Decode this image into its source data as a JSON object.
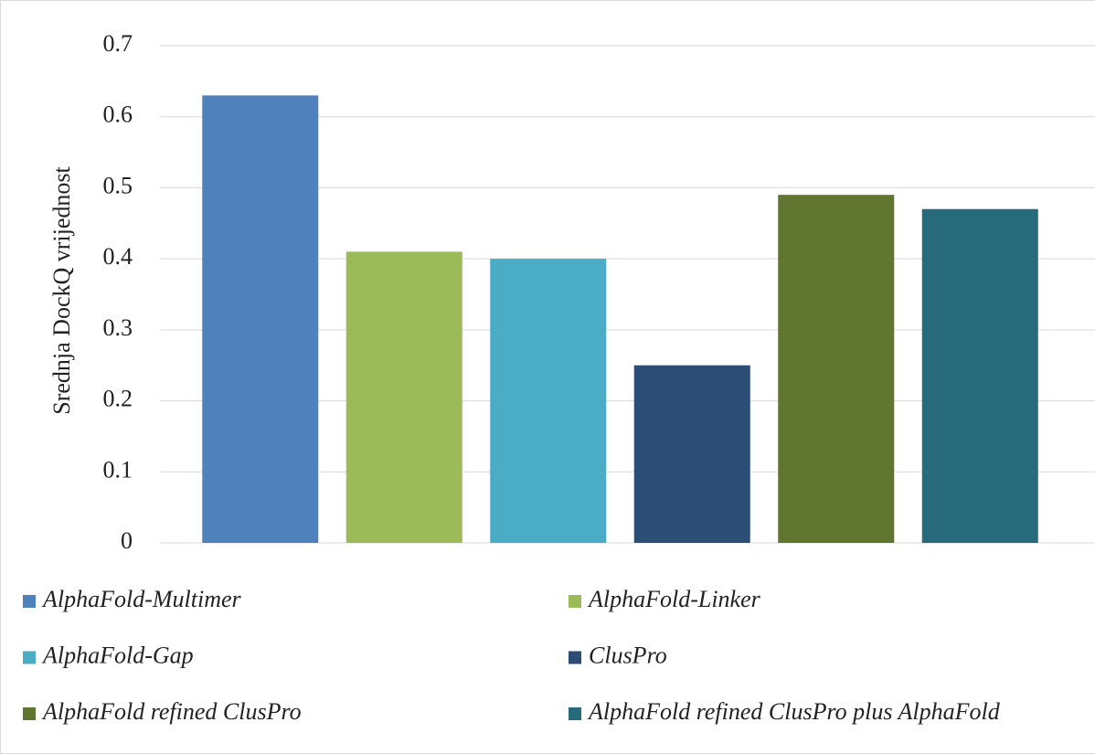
{
  "chart_data": {
    "type": "bar",
    "ylabel": "Srednja DockQ vrijednost",
    "ylim": [
      0,
      0.7
    ],
    "yticks": [
      0,
      0.1,
      0.2,
      0.3,
      0.4,
      0.5,
      0.6,
      0.7
    ],
    "grid": true,
    "legend": "bottom",
    "series": [
      {
        "name": "AlphaFold-Multimer",
        "color": "#4f81bd",
        "values": [
          0.63
        ]
      },
      {
        "name": "AlphaFold-Linker",
        "color": "#9bbb59",
        "values": [
          0.41
        ]
      },
      {
        "name": "AlphaFold-Gap",
        "color": "#4bacc6",
        "values": [
          0.4
        ]
      },
      {
        "name": "ClusPro",
        "color": "#2c4d75",
        "values": [
          0.25
        ]
      },
      {
        "name": "AlphaFold refined ClusPro",
        "color": "#5f7530",
        "values": [
          0.49
        ]
      },
      {
        "name": "AlphaFold refined ClusPro plus AlphaFold",
        "color": "#276a7c",
        "values": [
          0.47
        ]
      }
    ]
  }
}
